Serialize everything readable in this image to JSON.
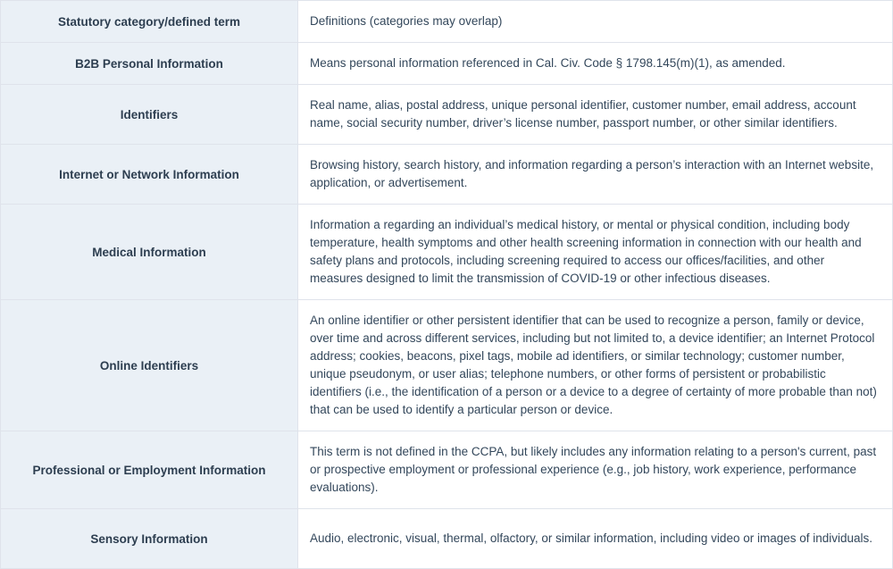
{
  "table": {
    "header": {
      "term": "Statutory category/defined term",
      "definition": "Definitions (categories may overlap)"
    },
    "rows": [
      {
        "term": "B2B Personal Information",
        "definition": "Means personal information referenced in Cal. Civ. Code § 1798.145(m)(1), as amended."
      },
      {
        "term": "Identifiers",
        "definition": "Real name, alias, postal address, unique personal identifier, customer number, email address, account name, social security number, driver’s license number, passport number, or other similar identifiers."
      },
      {
        "term": "Internet or Network Information",
        "definition": "Browsing history, search history, and information regarding a person’s interaction with an Internet website, application, or advertisement."
      },
      {
        "term": "Medical Information",
        "definition": "Information a regarding an individual’s medical history, or mental or physical condition, including body temperature, health symptoms and other health screening information in connection with our health and safety plans and protocols, including screening required to access our offices/facilities, and other measures designed to limit the transmission of COVID-19 or other infectious diseases."
      },
      {
        "term": "Online Identifiers",
        "definition": "An online identifier or other persistent identifier that can be used to recognize a person, family or device, over time and across different services, including but not limited to, a device identifier; an Internet Protocol address; cookies, beacons, pixel tags, mobile ad identifiers, or similar technology; customer number, unique pseudonym, or user alias; telephone numbers, or other forms of persistent or probabilistic identifiers (i.e., the identification of a person or a device to a degree of certainty of more probable than not) that can be used to identify a particular person or device."
      },
      {
        "term": "Professional or Employment Information",
        "definition": "This term is not defined in the CCPA, but likely includes any information relating to a person's current, past or prospective employment or professional experience (e.g., job history, work experience, performance evaluations)."
      },
      {
        "term": "Sensory Information",
        "definition": "Audio, electronic, visual, thermal, olfactory, or similar information, including video or images of individuals."
      }
    ]
  }
}
